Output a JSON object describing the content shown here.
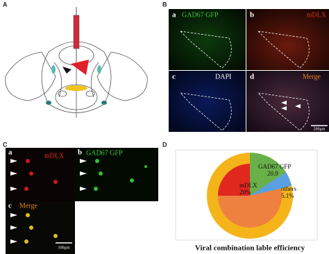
{
  "panel_a": {
    "label": "A"
  },
  "panel_b": {
    "label": "B",
    "scale": "200μm",
    "subpanels": [
      {
        "letter": "a",
        "stain": "GAD67 GFP"
      },
      {
        "letter": "b",
        "stain": "mDLX"
      },
      {
        "letter": "c",
        "stain": "DAPI"
      },
      {
        "letter": "d",
        "stain": "Merge"
      }
    ]
  },
  "panel_c": {
    "label": "C",
    "scale": "100μm",
    "subpanels": [
      {
        "letter": "a",
        "stain": "mDLX"
      },
      {
        "letter": "b",
        "stain": "GAD67 GFP"
      },
      {
        "letter": "c",
        "stain": "Merge"
      }
    ]
  },
  "panel_d": {
    "label": "D",
    "title": "Viral combination lable efficiency",
    "segments": [
      {
        "name": "GAD67 GFP",
        "value": "20.9"
      },
      {
        "name": "mDLX",
        "value": "20%"
      },
      {
        "name": "others",
        "value": "5.1%"
      }
    ]
  }
}
